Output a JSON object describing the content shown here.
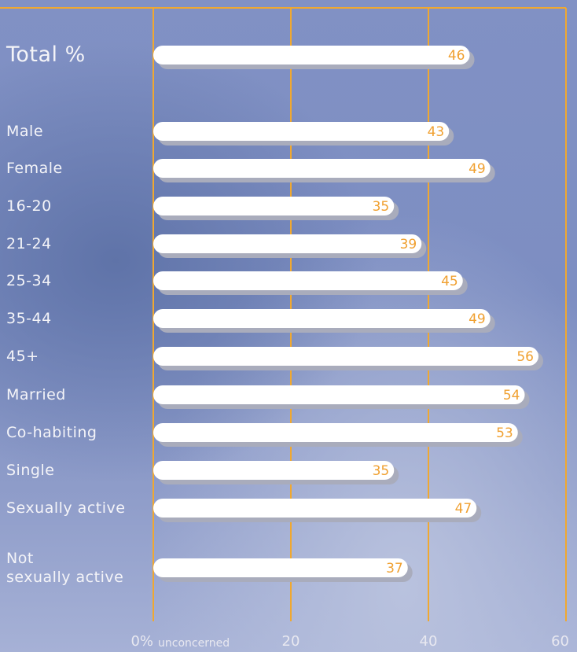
{
  "chart_data": {
    "type": "bar",
    "categories": [
      "Total %",
      "Male",
      "Female",
      "16-20",
      "21-24",
      "25-34",
      "35-44",
      "45+",
      "Married",
      "Co-habiting",
      "Single",
      "Sexually active",
      "Not\nsexually active"
    ],
    "values": [
      46,
      43,
      49,
      35,
      39,
      45,
      49,
      56,
      54,
      53,
      35,
      47,
      37
    ],
    "color": "#ffffff",
    "label_color": "#f0a030",
    "grid_color": "#f0a830",
    "xlim": [
      0,
      60
    ],
    "xticks": [
      {
        "value": 0,
        "label": "0%"
      },
      20,
      40,
      60
    ],
    "annotation": "unconcerned",
    "grid": true
  }
}
